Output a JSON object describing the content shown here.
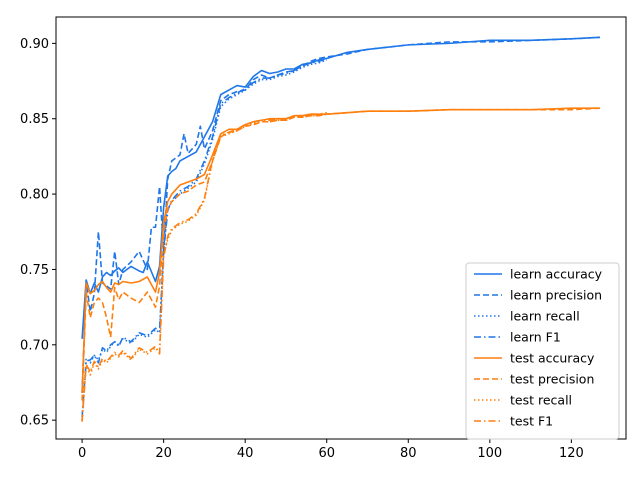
{
  "chart_data": {
    "type": "line",
    "title": "",
    "xlabel": "",
    "ylabel": "",
    "xlim": [
      -6.4,
      133.4
    ],
    "ylim": [
      0.6375,
      0.9175
    ],
    "xticks": [
      0,
      20,
      40,
      60,
      80,
      100,
      120
    ],
    "yticks": [
      0.65,
      0.7,
      0.75,
      0.8,
      0.85,
      0.9
    ],
    "ytick_labels": [
      "0.65",
      "0.70",
      "0.75",
      "0.80",
      "0.85",
      "0.90"
    ],
    "grid": false,
    "legend_position": "lower-right",
    "colors": {
      "learn": "#1f77e8",
      "test": "#ff7f0e"
    },
    "series": [
      {
        "name": "learn accuracy",
        "color": "#1f77e8",
        "style": "solid",
        "x": [
          0,
          1,
          2,
          3,
          4,
          5,
          6,
          7,
          8,
          9,
          10,
          12,
          14,
          15,
          16,
          18,
          19,
          20,
          21,
          22,
          23,
          24,
          26,
          28,
          30,
          32,
          34,
          36,
          38,
          40,
          42,
          44,
          46,
          48,
          50,
          52,
          54,
          56,
          58,
          60,
          65,
          70,
          80,
          90,
          100,
          110,
          120,
          127
        ],
        "y": [
          0.704,
          0.743,
          0.734,
          0.741,
          0.735,
          0.745,
          0.748,
          0.746,
          0.749,
          0.751,
          0.748,
          0.752,
          0.749,
          0.748,
          0.755,
          0.742,
          0.752,
          0.791,
          0.812,
          0.815,
          0.817,
          0.822,
          0.825,
          0.828,
          0.838,
          0.848,
          0.866,
          0.869,
          0.872,
          0.871,
          0.878,
          0.882,
          0.88,
          0.881,
          0.883,
          0.883,
          0.886,
          0.887,
          0.889,
          0.89,
          0.894,
          0.896,
          0.899,
          0.9,
          0.902,
          0.902,
          0.903,
          0.904
        ]
      },
      {
        "name": "learn precision",
        "color": "#1f77e8",
        "style": "dashed",
        "x": [
          0,
          1,
          2,
          3,
          4,
          5,
          6,
          7,
          8,
          9,
          10,
          12,
          14,
          16,
          17,
          18,
          19,
          20,
          21,
          22,
          24,
          25,
          26,
          28,
          29,
          30,
          32,
          34,
          36,
          38,
          40,
          42,
          44,
          46,
          48,
          50,
          52,
          54,
          56,
          58,
          60,
          65,
          70,
          80,
          90,
          100,
          110,
          120,
          127
        ],
        "y": [
          0.668,
          0.742,
          0.722,
          0.734,
          0.775,
          0.741,
          0.739,
          0.737,
          0.762,
          0.74,
          0.75,
          0.755,
          0.762,
          0.75,
          0.778,
          0.778,
          0.805,
          0.762,
          0.81,
          0.822,
          0.826,
          0.84,
          0.827,
          0.833,
          0.845,
          0.83,
          0.842,
          0.862,
          0.866,
          0.868,
          0.869,
          0.876,
          0.879,
          0.877,
          0.879,
          0.881,
          0.882,
          0.885,
          0.888,
          0.89,
          0.891,
          0.893,
          0.896,
          0.899,
          0.901,
          0.901,
          0.902,
          0.903,
          0.904
        ]
      },
      {
        "name": "learn recall",
        "color": "#1f77e8",
        "style": "dotted",
        "x": [
          0,
          1,
          2,
          3,
          4,
          5,
          6,
          7,
          8,
          9,
          10,
          12,
          14,
          16,
          18,
          19,
          20,
          21,
          22,
          24,
          26,
          28,
          30,
          32,
          34,
          36,
          38,
          40,
          42,
          44,
          46,
          48,
          50,
          52,
          54,
          56,
          58,
          60
        ],
        "y": [
          0.65,
          0.691,
          0.688,
          0.693,
          0.69,
          0.697,
          0.695,
          0.699,
          0.702,
          0.7,
          0.704,
          0.701,
          0.707,
          0.705,
          0.71,
          0.708,
          0.764,
          0.79,
          0.795,
          0.8,
          0.804,
          0.808,
          0.82,
          0.836,
          0.858,
          0.863,
          0.866,
          0.869,
          0.873,
          0.876,
          0.876,
          0.878,
          0.879,
          0.881,
          0.884,
          0.886,
          0.887,
          0.889
        ]
      },
      {
        "name": "learn F1",
        "color": "#1f77e8",
        "style": "dashdot",
        "x": [
          0,
          1,
          2,
          3,
          4,
          5,
          6,
          7,
          8,
          9,
          10,
          12,
          14,
          16,
          18,
          19,
          20,
          21,
          22,
          24,
          26,
          28,
          30,
          32,
          34,
          36,
          38,
          40,
          42,
          44,
          46,
          48,
          50,
          52,
          54,
          56,
          58,
          60
        ],
        "y": [
          0.652,
          0.689,
          0.69,
          0.693,
          0.688,
          0.698,
          0.696,
          0.7,
          0.702,
          0.699,
          0.705,
          0.702,
          0.708,
          0.706,
          0.711,
          0.709,
          0.762,
          0.789,
          0.796,
          0.802,
          0.805,
          0.81,
          0.822,
          0.838,
          0.86,
          0.864,
          0.867,
          0.87,
          0.874,
          0.877,
          0.877,
          0.879,
          0.88,
          0.882,
          0.885,
          0.887,
          0.888,
          0.89
        ]
      },
      {
        "name": "test accuracy",
        "color": "#ff7f0e",
        "style": "solid",
        "x": [
          0,
          1,
          2,
          3,
          4,
          5,
          6,
          7,
          8,
          9,
          10,
          12,
          14,
          16,
          18,
          19,
          20,
          21,
          22,
          24,
          26,
          28,
          30,
          32,
          34,
          36,
          38,
          40,
          42,
          44,
          46,
          48,
          50,
          52,
          54,
          56,
          58,
          60,
          65,
          70,
          80,
          90,
          100,
          110,
          120,
          127
        ],
        "y": [
          0.668,
          0.741,
          0.734,
          0.736,
          0.74,
          0.742,
          0.738,
          0.735,
          0.741,
          0.74,
          0.742,
          0.741,
          0.742,
          0.745,
          0.735,
          0.748,
          0.781,
          0.795,
          0.8,
          0.806,
          0.808,
          0.81,
          0.813,
          0.826,
          0.84,
          0.843,
          0.843,
          0.846,
          0.848,
          0.849,
          0.85,
          0.85,
          0.85,
          0.852,
          0.852,
          0.853,
          0.853,
          0.853,
          0.854,
          0.855,
          0.855,
          0.856,
          0.856,
          0.856,
          0.857,
          0.857
        ]
      },
      {
        "name": "test precision",
        "color": "#ff7f0e",
        "style": "dashed",
        "x": [
          0,
          1,
          2,
          3,
          4,
          5,
          6,
          7,
          8,
          9,
          10,
          12,
          14,
          16,
          18,
          19,
          20,
          21,
          22,
          24,
          26,
          28,
          30,
          32,
          34,
          36,
          38,
          40,
          42,
          44,
          46,
          48,
          50,
          52,
          54,
          56,
          58,
          60,
          65,
          70,
          80,
          90,
          100,
          110,
          120,
          127
        ],
        "y": [
          0.663,
          0.735,
          0.718,
          0.728,
          0.731,
          0.728,
          0.718,
          0.705,
          0.738,
          0.73,
          0.735,
          0.731,
          0.728,
          0.735,
          0.725,
          0.739,
          0.775,
          0.79,
          0.795,
          0.8,
          0.802,
          0.806,
          0.808,
          0.822,
          0.838,
          0.841,
          0.842,
          0.845,
          0.846,
          0.848,
          0.848,
          0.849,
          0.849,
          0.851,
          0.851,
          0.852,
          0.852,
          0.853,
          0.854,
          0.855,
          0.855,
          0.856,
          0.856,
          0.856,
          0.856,
          0.857
        ]
      },
      {
        "name": "test recall",
        "color": "#ff7f0e",
        "style": "dotted",
        "x": [
          0,
          1,
          2,
          3,
          4,
          5,
          6,
          7,
          8,
          9,
          10,
          12,
          14,
          16,
          18,
          19,
          20,
          21,
          22,
          24,
          26,
          28,
          30,
          32,
          34,
          36,
          38,
          40,
          42,
          44,
          46,
          48,
          50,
          52,
          54,
          56,
          58,
          60
        ],
        "y": [
          0.65,
          0.686,
          0.68,
          0.688,
          0.684,
          0.69,
          0.688,
          0.691,
          0.694,
          0.692,
          0.695,
          0.69,
          0.697,
          0.694,
          0.698,
          0.695,
          0.76,
          0.77,
          0.776,
          0.78,
          0.782,
          0.786,
          0.796,
          0.822,
          0.838,
          0.84,
          0.842,
          0.845,
          0.847,
          0.848,
          0.848,
          0.849,
          0.849,
          0.851,
          0.851,
          0.852,
          0.852,
          0.853
        ]
      },
      {
        "name": "test F1",
        "color": "#ff7f0e",
        "style": "dashdot",
        "x": [
          0,
          1,
          2,
          3,
          4,
          5,
          6,
          7,
          8,
          9,
          10,
          12,
          14,
          16,
          18,
          19,
          20,
          21,
          22,
          24,
          26,
          28,
          30,
          32,
          34,
          36,
          38,
          40,
          42,
          44,
          46,
          48,
          50,
          52,
          54,
          56,
          58,
          60
        ],
        "y": [
          0.649,
          0.687,
          0.682,
          0.689,
          0.685,
          0.691,
          0.689,
          0.692,
          0.695,
          0.693,
          0.696,
          0.691,
          0.698,
          0.695,
          0.699,
          0.694,
          0.758,
          0.772,
          0.777,
          0.781,
          0.783,
          0.787,
          0.797,
          0.823,
          0.839,
          0.841,
          0.843,
          0.846,
          0.848,
          0.849,
          0.849,
          0.85,
          0.85,
          0.852,
          0.852,
          0.853,
          0.853,
          0.854
        ]
      }
    ]
  }
}
